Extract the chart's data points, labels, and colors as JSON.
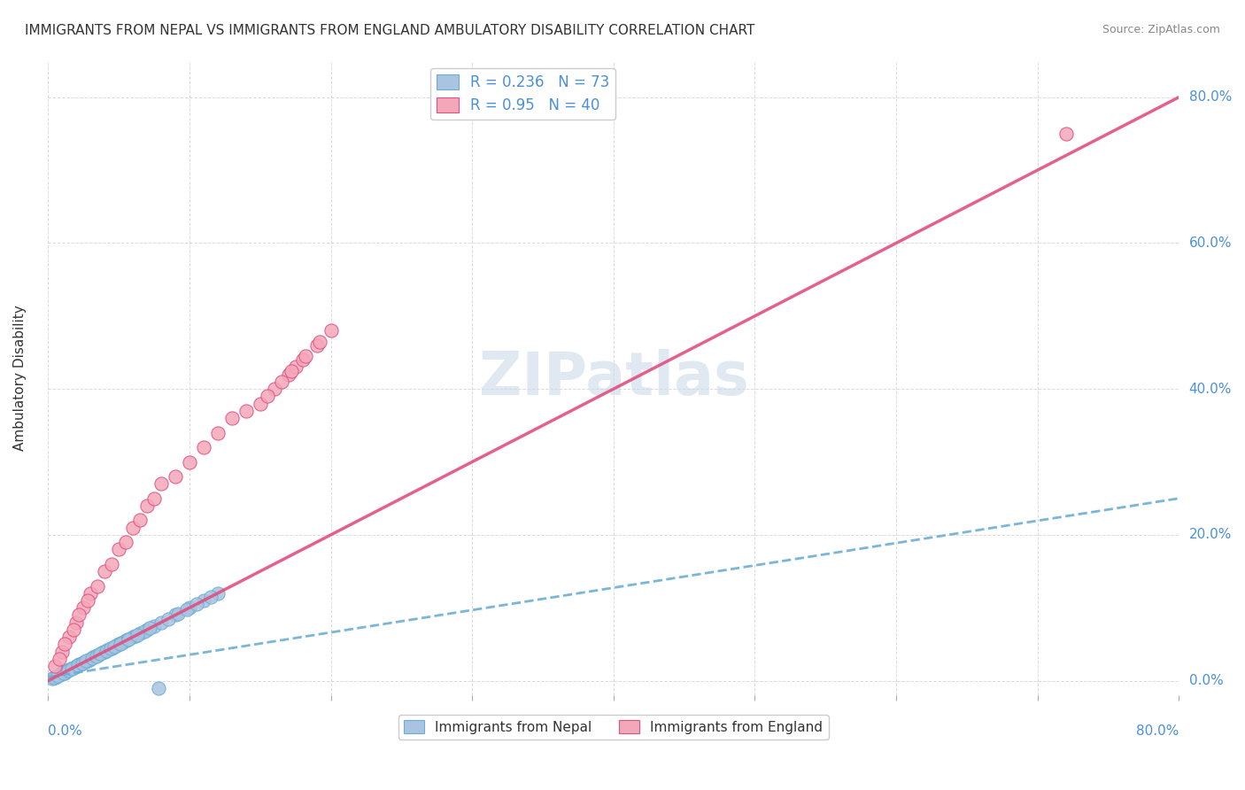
{
  "title": "IMMIGRANTS FROM NEPAL VS IMMIGRANTS FROM ENGLAND AMBULATORY DISABILITY CORRELATION CHART",
  "source": "Source: ZipAtlas.com",
  "ylabel": "Ambulatory Disability",
  "xlim": [
    0.0,
    0.8
  ],
  "ylim": [
    -0.02,
    0.85
  ],
  "nepal_R": 0.236,
  "nepal_N": 73,
  "england_R": 0.95,
  "england_N": 40,
  "nepal_color": "#a8c4e0",
  "nepal_line_color": "#6aaed6",
  "england_color": "#f4a7b9",
  "england_line_color": "#e05080",
  "nepal_scatter_x": [
    0.005,
    0.008,
    0.01,
    0.012,
    0.015,
    0.018,
    0.02,
    0.022,
    0.025,
    0.028,
    0.03,
    0.032,
    0.035,
    0.038,
    0.04,
    0.042,
    0.045,
    0.048,
    0.05,
    0.052,
    0.055,
    0.06,
    0.065,
    0.07,
    0.075,
    0.08,
    0.09,
    0.1,
    0.11,
    0.12,
    0.003,
    0.006,
    0.009,
    0.013,
    0.016,
    0.019,
    0.023,
    0.026,
    0.029,
    0.033,
    0.036,
    0.039,
    0.043,
    0.046,
    0.049,
    0.053,
    0.056,
    0.062,
    0.068,
    0.072,
    0.078,
    0.085,
    0.092,
    0.098,
    0.105,
    0.115,
    0.004,
    0.007,
    0.011,
    0.014,
    0.017,
    0.021,
    0.024,
    0.027,
    0.031,
    0.034,
    0.037,
    0.041,
    0.044,
    0.047,
    0.051,
    0.057,
    0.063
  ],
  "nepal_scatter_y": [
    0.005,
    0.008,
    0.012,
    0.01,
    0.015,
    0.018,
    0.02,
    0.022,
    0.025,
    0.028,
    0.03,
    0.032,
    0.035,
    0.038,
    0.04,
    0.042,
    0.045,
    0.048,
    0.05,
    0.052,
    0.055,
    0.06,
    0.065,
    0.07,
    0.075,
    0.08,
    0.09,
    0.1,
    0.11,
    0.12,
    0.003,
    0.006,
    0.009,
    0.013,
    0.016,
    0.019,
    0.023,
    0.026,
    0.029,
    0.033,
    0.036,
    0.039,
    0.043,
    0.046,
    0.049,
    0.053,
    0.056,
    0.062,
    0.068,
    0.072,
    -0.01,
    0.085,
    0.092,
    0.098,
    0.105,
    0.115,
    0.004,
    0.007,
    0.011,
    0.014,
    0.017,
    0.021,
    0.024,
    0.027,
    0.031,
    0.034,
    0.037,
    0.041,
    0.044,
    0.047,
    0.051,
    0.057,
    0.063
  ],
  "england_scatter_x": [
    0.005,
    0.01,
    0.015,
    0.02,
    0.025,
    0.03,
    0.04,
    0.05,
    0.06,
    0.07,
    0.08,
    0.1,
    0.12,
    0.15,
    0.16,
    0.17,
    0.175,
    0.18,
    0.19,
    0.2,
    0.008,
    0.012,
    0.018,
    0.022,
    0.028,
    0.035,
    0.045,
    0.055,
    0.065,
    0.075,
    0.09,
    0.11,
    0.13,
    0.14,
    0.155,
    0.165,
    0.172,
    0.182,
    0.192,
    0.72
  ],
  "england_scatter_y": [
    0.02,
    0.04,
    0.06,
    0.08,
    0.1,
    0.12,
    0.15,
    0.18,
    0.21,
    0.24,
    0.27,
    0.3,
    0.34,
    0.38,
    0.4,
    0.42,
    0.43,
    0.44,
    0.46,
    0.48,
    0.03,
    0.05,
    0.07,
    0.09,
    0.11,
    0.13,
    0.16,
    0.19,
    0.22,
    0.25,
    0.28,
    0.32,
    0.36,
    0.37,
    0.39,
    0.41,
    0.425,
    0.445,
    0.465,
    0.75
  ],
  "nepal_trend_x": [
    0.0,
    0.8
  ],
  "nepal_trend_y": [
    0.005,
    0.25
  ],
  "england_trend_x": [
    0.0,
    0.8
  ],
  "england_trend_y": [
    0.0,
    0.8
  ],
  "background_color": "#ffffff",
  "grid_color": "#cccccc",
  "label_color": "#4a90d9",
  "text_color": "#333333",
  "source_color": "#888888",
  "watermark_color": "#ccd9e8"
}
